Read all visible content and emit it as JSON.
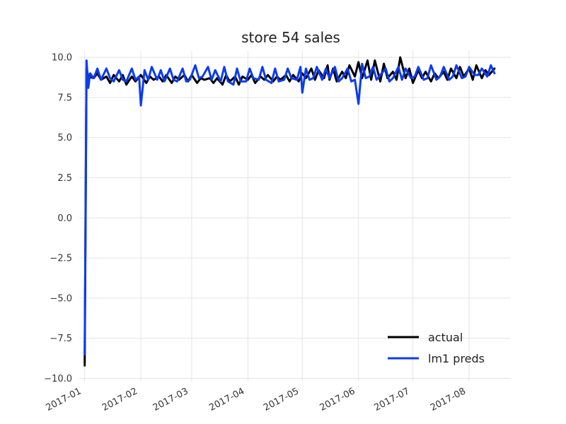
{
  "chart_data": {
    "type": "line",
    "title": "store 54 sales",
    "xlabel": "",
    "ylabel": "",
    "x_start": "2017-01-01",
    "x_end": "2017-08-15",
    "xlim": [
      "2016-12-29",
      "2017-08-24"
    ],
    "ylim": [
      -10.2,
      10.4
    ],
    "yticks": [
      10.0,
      7.5,
      5.0,
      2.5,
      0.0,
      -2.5,
      -5.0,
      -7.5,
      -10.0
    ],
    "ytick_labels": [
      "10.0",
      "7.5",
      "5.0",
      "2.5",
      "0.0",
      "−2.5",
      "−5.0",
      "−7.5",
      "−10.0"
    ],
    "xticks": [
      "2017-01-01",
      "2017-02-01",
      "2017-03-01",
      "2017-04-01",
      "2017-05-01",
      "2017-06-01",
      "2017-07-01",
      "2017-08-01"
    ],
    "xtick_labels": [
      "2017-01",
      "2017-02",
      "2017-03",
      "2017-04",
      "2017-05",
      "2017-06",
      "2017-07",
      "2017-08"
    ],
    "grid": true,
    "legend_position": "bottom-right",
    "series": [
      {
        "name": "actual",
        "color": "#000000",
        "x": [
          "2017-01-01",
          "2017-01-02",
          "2017-01-03",
          "2017-01-06",
          "2017-01-08",
          "2017-01-10",
          "2017-01-13",
          "2017-01-15",
          "2017-01-17",
          "2017-01-20",
          "2017-01-22",
          "2017-01-24",
          "2017-01-27",
          "2017-01-29",
          "2017-02-01",
          "2017-02-04",
          "2017-02-06",
          "2017-02-08",
          "2017-02-11",
          "2017-02-13",
          "2017-02-15",
          "2017-02-18",
          "2017-02-20",
          "2017-02-22",
          "2017-02-25",
          "2017-02-27",
          "2017-03-01",
          "2017-03-04",
          "2017-03-06",
          "2017-03-08",
          "2017-03-11",
          "2017-03-13",
          "2017-03-15",
          "2017-03-18",
          "2017-03-20",
          "2017-03-22",
          "2017-03-25",
          "2017-03-27",
          "2017-03-29",
          "2017-04-01",
          "2017-04-03",
          "2017-04-05",
          "2017-04-08",
          "2017-04-10",
          "2017-04-12",
          "2017-04-15",
          "2017-04-17",
          "2017-04-19",
          "2017-04-22",
          "2017-04-24",
          "2017-04-26",
          "2017-04-29",
          "2017-05-01",
          "2017-05-03",
          "2017-05-06",
          "2017-05-08",
          "2017-05-10",
          "2017-05-13",
          "2017-05-15",
          "2017-05-16",
          "2017-05-18",
          "2017-05-20",
          "2017-05-23",
          "2017-05-25",
          "2017-05-27",
          "2017-05-30",
          "2017-06-01",
          "2017-06-03",
          "2017-06-06",
          "2017-06-08",
          "2017-06-10",
          "2017-06-13",
          "2017-06-15",
          "2017-06-17",
          "2017-06-20",
          "2017-06-22",
          "2017-06-24",
          "2017-06-27",
          "2017-06-29",
          "2017-07-01",
          "2017-07-04",
          "2017-07-06",
          "2017-07-08",
          "2017-07-11",
          "2017-07-13",
          "2017-07-15",
          "2017-07-18",
          "2017-07-20",
          "2017-07-22",
          "2017-07-25",
          "2017-07-27",
          "2017-07-29",
          "2017-08-01",
          "2017-08-03",
          "2017-08-05",
          "2017-08-08",
          "2017-08-10",
          "2017-08-12",
          "2017-08-15"
        ],
        "y": [
          -9.2,
          9.3,
          8.8,
          8.7,
          9.0,
          8.6,
          8.8,
          8.4,
          8.9,
          8.5,
          8.9,
          8.3,
          8.8,
          8.5,
          8.9,
          8.4,
          8.8,
          8.6,
          8.8,
          8.5,
          8.9,
          8.4,
          8.8,
          8.6,
          8.9,
          8.5,
          8.9,
          8.4,
          8.7,
          8.6,
          8.7,
          8.4,
          8.7,
          8.3,
          8.9,
          8.5,
          8.8,
          8.3,
          8.8,
          8.6,
          8.9,
          8.4,
          8.8,
          8.6,
          8.9,
          8.5,
          8.8,
          8.6,
          8.9,
          8.5,
          8.9,
          8.5,
          9.0,
          8.7,
          9.3,
          8.6,
          9.2,
          8.7,
          9.5,
          8.6,
          9.3,
          8.5,
          9.1,
          8.7,
          9.5,
          8.8,
          9.7,
          8.7,
          9.8,
          8.6,
          9.8,
          8.5,
          9.6,
          8.7,
          9.1,
          8.6,
          10.0,
          8.7,
          9.3,
          8.4,
          9.2,
          8.7,
          9.1,
          8.5,
          9.0,
          8.7,
          9.1,
          8.6,
          9.3,
          8.7,
          9.4,
          8.8,
          9.3,
          8.6,
          9.5,
          8.7,
          9.2,
          8.9,
          9.3
        ]
      },
      {
        "name": "lm1 preds",
        "color": "#0a3cf0",
        "x": [
          "2017-01-01",
          "2017-01-02",
          "2017-01-03",
          "2017-01-04",
          "2017-01-06",
          "2017-01-08",
          "2017-01-10",
          "2017-01-13",
          "2017-01-15",
          "2017-01-17",
          "2017-01-20",
          "2017-01-22",
          "2017-01-24",
          "2017-01-27",
          "2017-01-29",
          "2017-01-31",
          "2017-02-01",
          "2017-02-03",
          "2017-02-05",
          "2017-02-07",
          "2017-02-10",
          "2017-02-12",
          "2017-02-14",
          "2017-02-17",
          "2017-02-19",
          "2017-02-21",
          "2017-02-24",
          "2017-02-26",
          "2017-02-28",
          "2017-03-03",
          "2017-03-05",
          "2017-03-07",
          "2017-03-10",
          "2017-03-12",
          "2017-03-14",
          "2017-03-17",
          "2017-03-19",
          "2017-03-21",
          "2017-03-24",
          "2017-03-26",
          "2017-03-28",
          "2017-03-31",
          "2017-04-02",
          "2017-04-04",
          "2017-04-07",
          "2017-04-09",
          "2017-04-11",
          "2017-04-14",
          "2017-04-16",
          "2017-04-18",
          "2017-04-21",
          "2017-04-23",
          "2017-04-25",
          "2017-04-28",
          "2017-04-30",
          "2017-05-01",
          "2017-05-03",
          "2017-05-05",
          "2017-05-07",
          "2017-05-09",
          "2017-05-12",
          "2017-05-14",
          "2017-05-16",
          "2017-05-19",
          "2017-05-21",
          "2017-05-23",
          "2017-05-26",
          "2017-05-28",
          "2017-05-30",
          "2017-06-01",
          "2017-06-03",
          "2017-06-05",
          "2017-06-07",
          "2017-06-09",
          "2017-06-11",
          "2017-06-13",
          "2017-06-16",
          "2017-06-18",
          "2017-06-20",
          "2017-06-23",
          "2017-06-25",
          "2017-06-27",
          "2017-06-30",
          "2017-07-02",
          "2017-07-04",
          "2017-07-07",
          "2017-07-09",
          "2017-07-11",
          "2017-07-14",
          "2017-07-16",
          "2017-07-18",
          "2017-07-21",
          "2017-07-23",
          "2017-07-25",
          "2017-07-28",
          "2017-07-30",
          "2017-08-01",
          "2017-08-04",
          "2017-08-06",
          "2017-08-08",
          "2017-08-11",
          "2017-08-13",
          "2017-08-15"
        ],
        "y": [
          -8.5,
          9.8,
          8.1,
          9.0,
          8.7,
          9.3,
          8.6,
          9.3,
          8.7,
          8.5,
          9.2,
          8.6,
          8.5,
          9.3,
          8.6,
          8.8,
          7.0,
          9.2,
          8.6,
          9.4,
          8.6,
          9.2,
          8.5,
          9.3,
          8.6,
          8.5,
          9.3,
          8.5,
          8.6,
          9.5,
          8.7,
          8.8,
          9.4,
          8.6,
          9.2,
          8.5,
          9.4,
          8.5,
          8.3,
          9.3,
          8.5,
          8.5,
          9.3,
          8.7,
          8.6,
          9.4,
          8.6,
          8.4,
          9.3,
          8.5,
          8.6,
          9.3,
          8.7,
          8.6,
          9.4,
          7.8,
          9.3,
          8.6,
          8.7,
          9.4,
          8.6,
          9.3,
          8.7,
          9.4,
          8.5,
          8.7,
          9.3,
          8.5,
          8.6,
          7.1,
          9.6,
          8.7,
          8.8,
          9.4,
          8.6,
          8.9,
          9.3,
          8.5,
          8.7,
          9.4,
          8.6,
          9.3,
          8.7,
          8.8,
          9.4,
          8.6,
          8.7,
          9.5,
          8.6,
          8.8,
          9.4,
          8.6,
          8.8,
          9.5,
          8.7,
          8.8,
          9.4,
          8.9,
          8.9,
          9.3,
          8.8,
          9.5,
          9.0
        ]
      }
    ]
  }
}
